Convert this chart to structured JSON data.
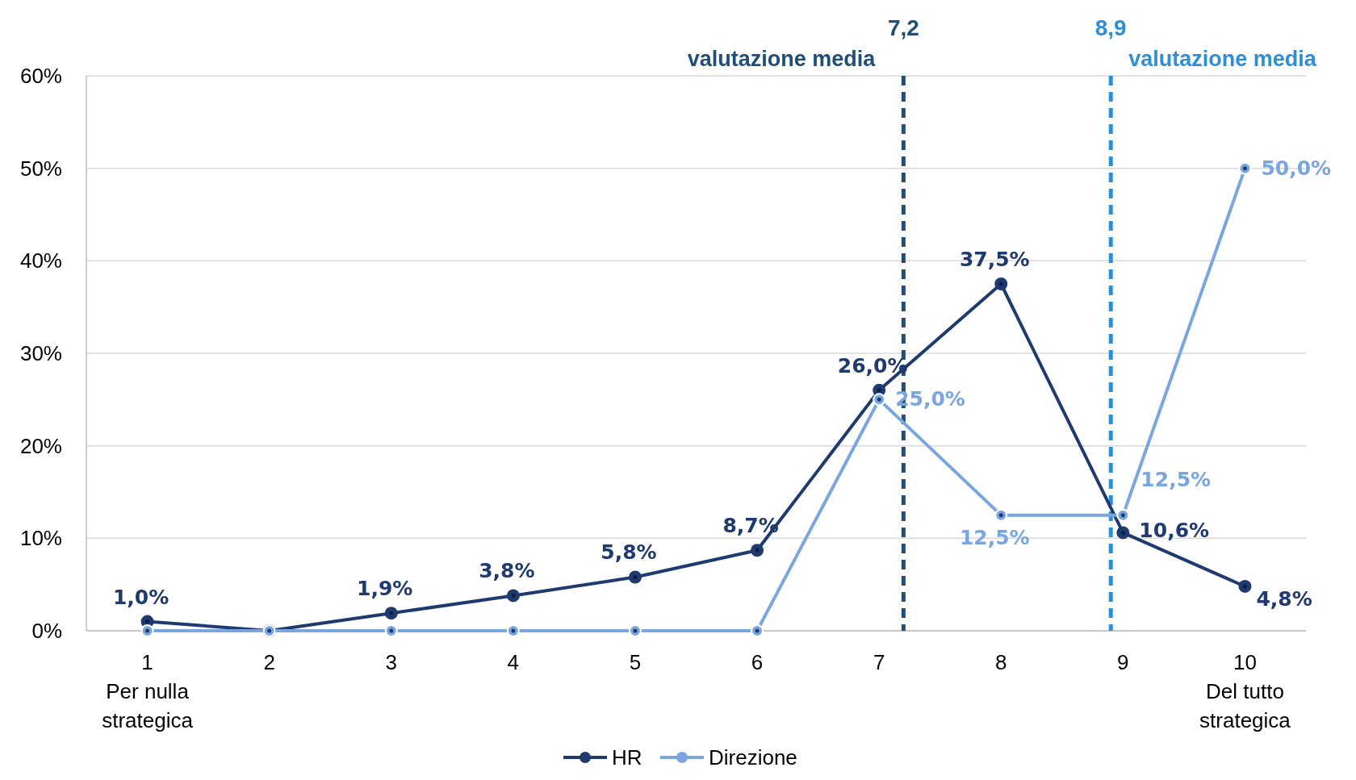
{
  "chart_data": {
    "type": "line",
    "x": [
      1,
      2,
      3,
      4,
      5,
      6,
      7,
      8,
      9,
      10
    ],
    "xlim": [
      0.5,
      10.5
    ],
    "xticks": [
      {
        "value": 1,
        "label": "1\nPer nulla\nstrategica"
      },
      {
        "value": 2,
        "label": "2"
      },
      {
        "value": 3,
        "label": "3"
      },
      {
        "value": 4,
        "label": "4"
      },
      {
        "value": 5,
        "label": "5"
      },
      {
        "value": 6,
        "label": "6"
      },
      {
        "value": 7,
        "label": "7"
      },
      {
        "value": 8,
        "label": "8"
      },
      {
        "value": 9,
        "label": "9"
      },
      {
        "value": 10,
        "label": "10\nDel tutto\nstrategica"
      }
    ],
    "ylim": [
      0,
      60
    ],
    "yticks": [
      {
        "value": 0,
        "label": "0%"
      },
      {
        "value": 10,
        "label": "10%"
      },
      {
        "value": 20,
        "label": "20%"
      },
      {
        "value": 30,
        "label": "30%"
      },
      {
        "value": 40,
        "label": "40%"
      },
      {
        "value": 50,
        "label": "50%"
      },
      {
        "value": 60,
        "label": "60%"
      }
    ],
    "grid": "y",
    "legend": "bottom",
    "marker": "circle",
    "line_style": "solid",
    "series": [
      {
        "name": "HR",
        "color": "#1f3a6e",
        "values": [
          1.0,
          0,
          1.9,
          3.8,
          5.8,
          8.7,
          26.0,
          37.5,
          10.6,
          4.8
        ],
        "value_labels": [
          "1,0%",
          null,
          "1,9%",
          "3,8%",
          "5,8%",
          "8,7%",
          "26,0%",
          "37,5%",
          "10,6%",
          "4,8%"
        ]
      },
      {
        "name": "Direzione",
        "color": "#7aa6e0",
        "values": [
          0,
          0,
          0,
          0,
          0,
          0,
          25.0,
          12.5,
          12.5,
          50.0
        ],
        "value_labels": [
          null,
          null,
          null,
          null,
          null,
          null,
          "25,0%",
          "12,5%",
          "12,5%",
          "50,0%"
        ]
      }
    ],
    "ref_lines": [
      {
        "axis": "x",
        "value": 7.2,
        "label": "7,2\nvalutazione media",
        "color": "#1f4e79",
        "line_style": "dashed"
      },
      {
        "axis": "x",
        "value": 8.9,
        "label": "8,9\nvalutazione media",
        "color": "#2e8fd6",
        "line_style": "dashed"
      }
    ]
  }
}
